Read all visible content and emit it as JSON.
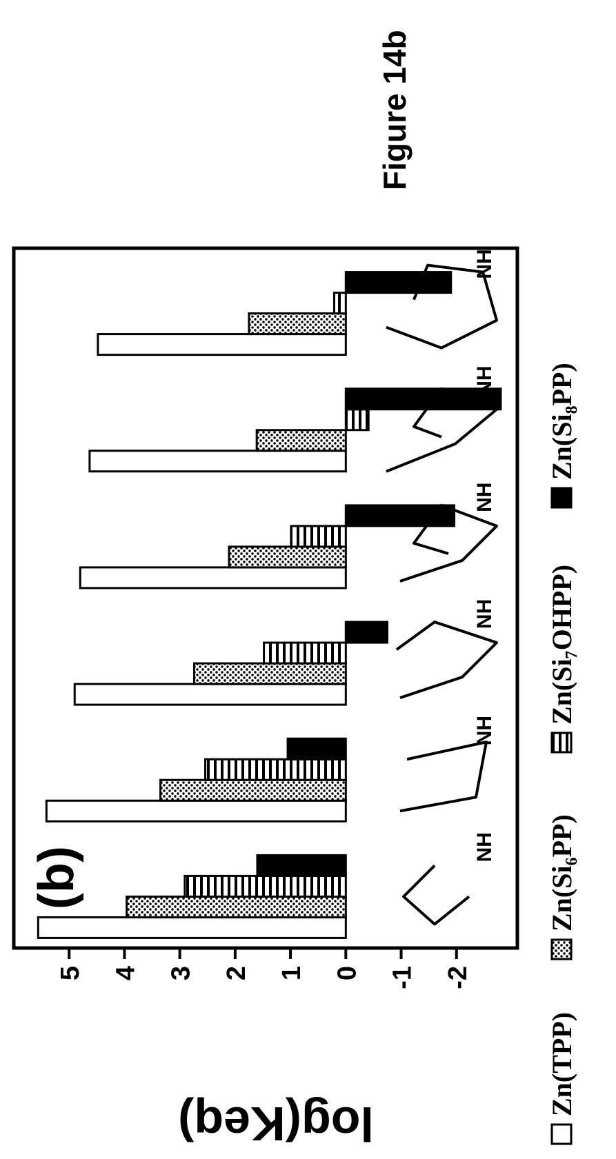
{
  "chart_data": {
    "type": "bar",
    "title": "Figure 14b",
    "annotation": "(b)",
    "ylabel": "log(Keq)",
    "categories": [
      null,
      null,
      null,
      null,
      null,
      null
    ],
    "series": [
      {
        "name": "Zn(TPP)",
        "color": "#ffffff",
        "pattern": "solid",
        "values": [
          5.56,
          5.41,
          4.9,
          4.8,
          4.63,
          4.48
        ]
      },
      {
        "name": "Zn(Si₆PP)",
        "color": "#ffffff",
        "pattern": "dots",
        "values": [
          3.96,
          3.35,
          2.74,
          2.11,
          1.61,
          1.75
        ]
      },
      {
        "name": "Zn(Si₇OHPP)",
        "color": "#ffffff",
        "pattern": "stripes",
        "values": [
          2.91,
          2.54,
          1.48,
          0.99,
          -0.41,
          0.21
        ]
      },
      {
        "name": "Zn(Si₈PP)",
        "color": "#000000",
        "pattern": "solid",
        "values": [
          1.6,
          1.05,
          -0.75,
          -1.96,
          -2.8,
          -1.9
        ]
      }
    ],
    "ylim": [
      -3.1,
      6.0
    ],
    "yticks": [
      5,
      4,
      3,
      2,
      1,
      0,
      -1,
      -2
    ],
    "legend": "bottom"
  }
}
